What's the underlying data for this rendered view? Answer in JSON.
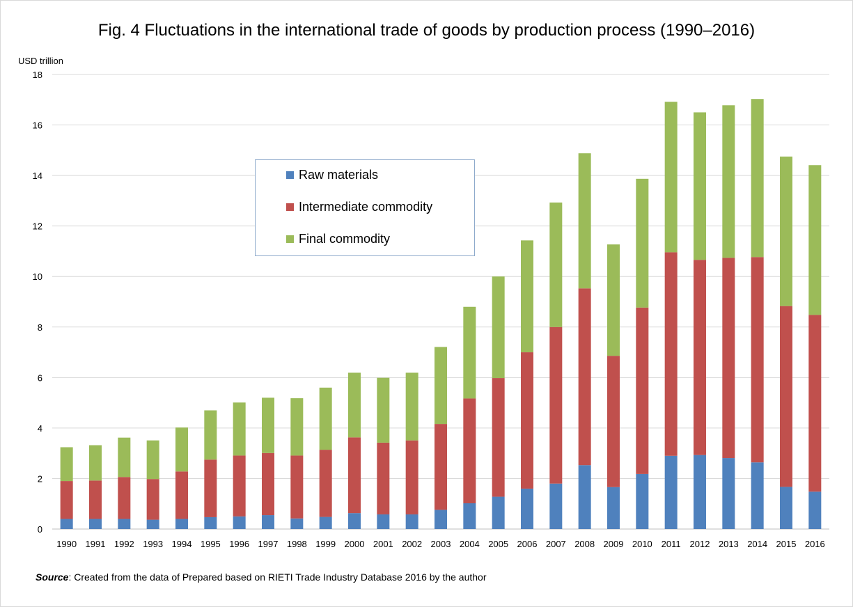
{
  "title": "Fig. 4 Fluctuations in the international trade of goods by production process (1990–2016)",
  "unit_label": "USD trillion",
  "source": {
    "label": "Source",
    "text": ": Created from the data of Prepared based on RIETI  Trade Industry  Database 2016 by the author"
  },
  "colors": {
    "raw": "#4f81bd",
    "intermediate": "#c0504d",
    "final": "#9bbb59",
    "grid": "#d9d9d9"
  },
  "chart_data": {
    "type": "bar",
    "stacked": true,
    "title": "Fig. 4 Fluctuations in the international trade of goods by production process (1990–2016)",
    "ylabel": "USD trillion",
    "ylim": [
      0,
      18
    ],
    "yticks": [
      0,
      2,
      4,
      6,
      8,
      10,
      12,
      14,
      16,
      18
    ],
    "grid": true,
    "legend_position": "upper-center",
    "categories": [
      "1990",
      "1991",
      "1992",
      "1993",
      "1994",
      "1995",
      "1996",
      "1997",
      "1998",
      "1999",
      "2000",
      "2001",
      "2002",
      "2003",
      "2004",
      "2005",
      "2006",
      "2007",
      "2008",
      "2009",
      "2010",
      "2011",
      "2012",
      "2013",
      "2014",
      "2015",
      "2016"
    ],
    "series": [
      {
        "name": "Raw materials",
        "color": "#4f81bd",
        "values": [
          0.4,
          0.4,
          0.4,
          0.37,
          0.4,
          0.47,
          0.5,
          0.55,
          0.42,
          0.48,
          0.63,
          0.58,
          0.58,
          0.76,
          1.02,
          1.28,
          1.6,
          1.8,
          2.53,
          1.66,
          2.18,
          2.9,
          2.93,
          2.81,
          2.64,
          1.67,
          1.48
        ]
      },
      {
        "name": "Intermediate commodity",
        "color": "#c0504d",
        "values": [
          1.5,
          1.52,
          1.66,
          1.61,
          1.88,
          2.28,
          2.41,
          2.46,
          2.49,
          2.66,
          3.0,
          2.84,
          2.93,
          3.4,
          4.15,
          4.7,
          5.4,
          6.2,
          7.0,
          5.2,
          6.59,
          8.06,
          7.73,
          7.93,
          8.13,
          7.16,
          7.0
        ]
      },
      {
        "name": "Final commodity",
        "color": "#9bbb59",
        "values": [
          1.34,
          1.4,
          1.56,
          1.53,
          1.74,
          1.95,
          2.1,
          2.19,
          2.27,
          2.46,
          2.56,
          2.57,
          2.68,
          3.05,
          3.63,
          4.02,
          4.43,
          4.93,
          5.35,
          4.41,
          5.1,
          5.96,
          5.84,
          6.04,
          6.26,
          5.92,
          5.93
        ]
      }
    ]
  }
}
